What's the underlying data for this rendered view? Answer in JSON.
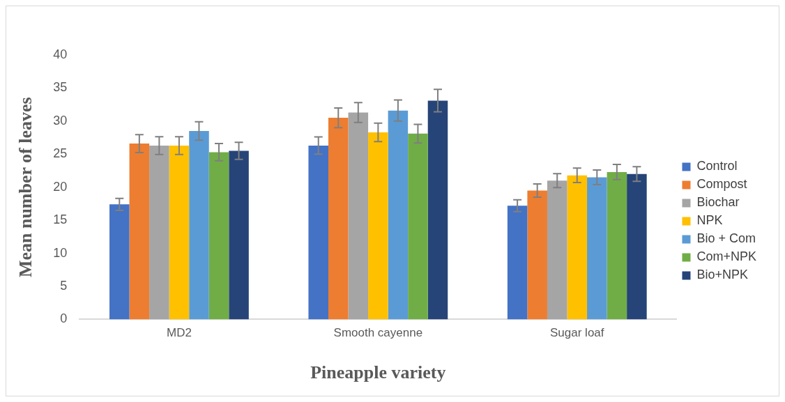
{
  "chart_data": {
    "type": "bar",
    "xlabel": "Pineapple variety",
    "ylabel": "Mean number of leaves",
    "categories": [
      "MD2",
      "Smooth cayenne",
      "Sugar loaf"
    ],
    "series": [
      {
        "name": "Control",
        "color": "#4472c4",
        "values": [
          17.4,
          26.3,
          17.2
        ],
        "errors": [
          0.9,
          1.3,
          0.9
        ]
      },
      {
        "name": "Compost",
        "color": "#ed7d31",
        "values": [
          26.6,
          30.5,
          19.5
        ],
        "errors": [
          1.35,
          1.5,
          1.0
        ]
      },
      {
        "name": "Biochar",
        "color": "#a5a5a5",
        "values": [
          26.3,
          31.3,
          21.0
        ],
        "errors": [
          1.35,
          1.5,
          1.05
        ]
      },
      {
        "name": "NPK",
        "color": "#ffc000",
        "values": [
          26.3,
          28.3,
          21.8
        ],
        "errors": [
          1.35,
          1.4,
          1.1
        ]
      },
      {
        "name": "Bio + Com",
        "color": "#5b9bd5",
        "values": [
          28.5,
          31.6,
          21.5
        ],
        "errors": [
          1.4,
          1.6,
          1.1
        ]
      },
      {
        "name": "Com+NPK",
        "color": "#70ad47",
        "values": [
          25.3,
          28.1,
          22.3
        ],
        "errors": [
          1.3,
          1.4,
          1.15
        ]
      },
      {
        "name": "Bio+NPK",
        "color": "#264478",
        "values": [
          25.5,
          33.1,
          22.0
        ],
        "errors": [
          1.3,
          1.7,
          1.1
        ]
      }
    ],
    "ylim": [
      0,
      40
    ],
    "yticks": [
      0,
      5,
      10,
      15,
      20,
      25,
      30,
      35,
      40
    ],
    "grid": false,
    "legend": "right"
  }
}
